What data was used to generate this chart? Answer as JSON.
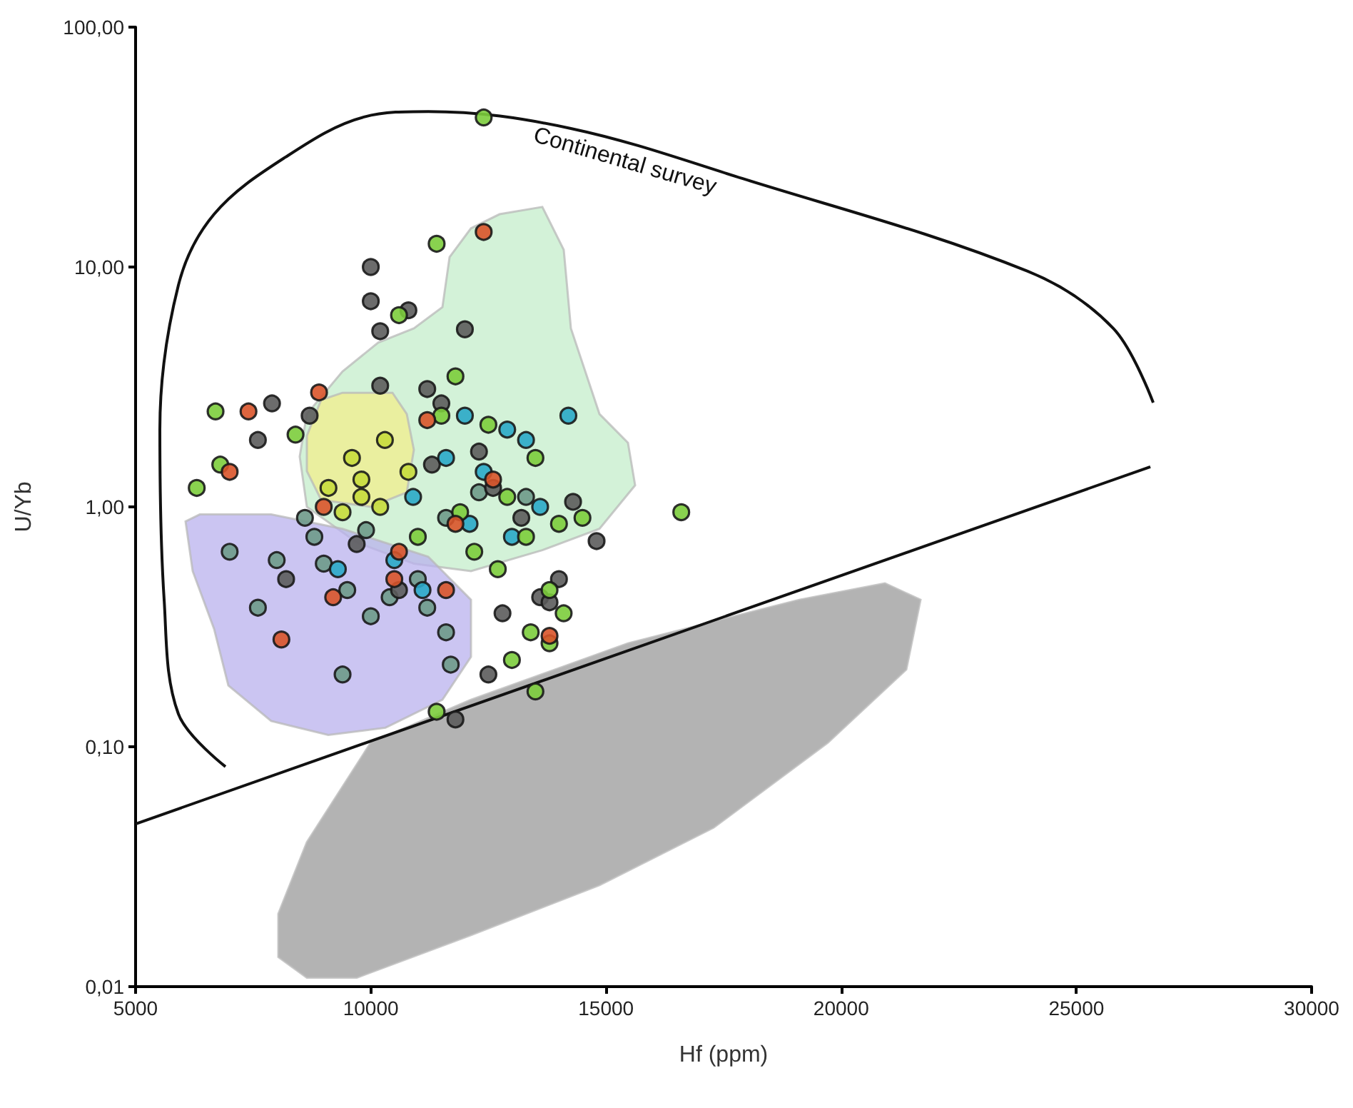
{
  "chart_data": {
    "type": "scatter",
    "xlabel": "Hf (ppm)",
    "ylabel": "U/Yb",
    "log": "y",
    "marker": "circle",
    "xlim": [
      5000,
      30000
    ],
    "xticks": [
      5000,
      10000,
      15000,
      20000,
      25000,
      30000
    ],
    "ylim": [
      0.01,
      100
    ],
    "yticks": [
      {
        "value": 0.01,
        "label": "0,01"
      },
      {
        "value": 0.1,
        "label": "0,10"
      },
      {
        "value": 1,
        "label": "1,00"
      },
      {
        "value": 10,
        "label": "10,00"
      },
      {
        "value": 100,
        "label": "100,00"
      }
    ],
    "series": [
      {
        "type": "area",
        "marker": "none",
        "color": "#c4eecb",
        "x": [
          8489,
          8641,
          9399,
          10158,
          10916,
          11523,
          11675,
          12130,
          12737,
          13647,
          14102,
          14254,
          14861,
          15467,
          15619,
          14861,
          13647,
          12130,
          10916,
          9703,
          8641
        ],
        "values": [
          1.62,
          2.44,
          3.67,
          4.84,
          5.55,
          6.8,
          11.0,
          14.5,
          16.6,
          17.8,
          11.8,
          5.55,
          2.44,
          1.85,
          1.23,
          0.81,
          0.66,
          0.54,
          0.58,
          0.71,
          1.0
        ]
      },
      {
        "type": "area",
        "marker": "none",
        "color": "#b9b2ee",
        "x": [
          6062,
          6365,
          7882,
          9399,
          11220,
          12130,
          12130,
          11523,
          10310,
          9096,
          7882,
          6972,
          6669,
          6214
        ],
        "values": [
          0.87,
          0.93,
          0.93,
          0.81,
          0.62,
          0.41,
          0.237,
          0.157,
          0.12,
          0.112,
          0.128,
          0.18,
          0.31,
          0.54
        ]
      },
      {
        "type": "area",
        "marker": "none",
        "color": "#f2ee8c",
        "x": [
          8641,
          8944,
          9399,
          10461,
          10765,
          10916,
          10765,
          10000,
          8944,
          8641
        ],
        "values": [
          1.98,
          2.79,
          2.99,
          2.99,
          2.44,
          1.73,
          1.15,
          1.0,
          1.07,
          1.41
        ]
      },
      {
        "type": "area",
        "marker": "none",
        "color": "#9a9a9a",
        "x": [
          8034,
          8641,
          10000,
          12130,
          15467,
          19108,
          20929,
          21687,
          21384,
          19715,
          17288,
          14861,
          12130,
          9703,
          8641,
          8034
        ],
        "values": [
          0.0201,
          0.04,
          0.104,
          0.157,
          0.27,
          0.41,
          0.48,
          0.41,
          0.21,
          0.104,
          0.046,
          0.0265,
          0.0164,
          0.0109,
          0.0109,
          0.0133
        ]
      },
      {
        "type": "line",
        "marker": "none",
        "name": "Continental survey",
        "color": "#111111",
        "line_style": "solid",
        "x": [
          6911,
          5910,
          5607,
          5516,
          5910,
          6669,
          8186,
          9854,
          11220,
          14254,
          17895,
          23963,
          25783,
          26633
        ],
        "values": [
          0.0826,
          0.137,
          0.41,
          2.1,
          8.4,
          16.6,
          28.7,
          42.2,
          44.5,
          37.8,
          23.4,
          9.6,
          5.55,
          2.72
        ]
      },
      {
        "type": "line",
        "marker": "none",
        "color": "#111111",
        "line_style": "solid",
        "x": [
          5000,
          26572
        ],
        "values": [
          0.0477,
          1.47
        ]
      },
      {
        "color": "#6e9a8a",
        "x": [
          7000,
          7600,
          9400,
          8000,
          8800,
          9500,
          10000,
          11000,
          11600,
          11700,
          9000,
          10400,
          11200,
          8600,
          9900,
          11600,
          12300,
          13300
        ],
        "values": [
          0.65,
          0.38,
          0.2,
          0.6,
          0.75,
          0.45,
          0.35,
          0.5,
          0.3,
          0.22,
          0.58,
          0.42,
          0.38,
          0.9,
          0.8,
          0.9,
          1.15,
          1.1
        ]
      },
      {
        "color": "#5c5c5c",
        "x": [
          10000,
          10000,
          10200,
          10800,
          10200,
          11200,
          12000,
          7900,
          7600,
          8700,
          12500,
          11800,
          14800,
          14300,
          13600,
          12800,
          13800,
          14000,
          9700,
          8200,
          10600,
          11500,
          11300,
          12600,
          13200,
          12300
        ],
        "values": [
          10,
          7.2,
          5.4,
          6.6,
          3.2,
          3.1,
          5.5,
          2.7,
          1.9,
          2.4,
          0.2,
          0.13,
          0.72,
          1.05,
          0.42,
          0.36,
          0.4,
          0.5,
          0.7,
          0.5,
          0.45,
          2.7,
          1.5,
          1.2,
          0.9,
          1.7
        ]
      },
      {
        "color": "#2aa8c8",
        "x": [
          12000,
          14200,
          12900,
          13300,
          11600,
          12400,
          10900,
          12100,
          13600,
          10500,
          9300,
          11100,
          13000
        ],
        "values": [
          2.4,
          2.4,
          2.1,
          1.9,
          1.6,
          1.4,
          1.1,
          0.85,
          1.0,
          0.6,
          0.55,
          0.45,
          0.75
        ]
      },
      {
        "color": "#7ccd3c",
        "x": [
          12400,
          11400,
          10600,
          11800,
          6700,
          6800,
          6300,
          8400,
          11500,
          12500,
          13500,
          12900,
          14000,
          13300,
          16600,
          11900,
          11000,
          12700,
          13400,
          13800,
          14100,
          13000,
          13500,
          11400,
          13800,
          12200,
          14500
        ],
        "values": [
          42,
          12.5,
          6.3,
          3.5,
          2.5,
          1.5,
          1.2,
          2.0,
          2.4,
          2.2,
          1.6,
          1.1,
          0.85,
          0.75,
          0.95,
          0.95,
          0.75,
          0.55,
          0.3,
          0.45,
          0.36,
          0.23,
          0.17,
          0.14,
          0.27,
          0.65,
          0.9
        ]
      },
      {
        "color": "#d9542a",
        "x": [
          12400,
          7400,
          7000,
          8900,
          8100,
          11200,
          9200,
          10500,
          13800,
          9000,
          11800,
          12600,
          10600,
          11600
        ],
        "values": [
          14,
          2.5,
          1.4,
          3.0,
          0.28,
          2.3,
          0.42,
          0.5,
          0.29,
          1.0,
          0.85,
          1.3,
          0.65,
          0.45
        ]
      },
      {
        "color": "#c8dc3c",
        "x": [
          9600,
          10300,
          9100,
          9800,
          10200,
          9400,
          10800,
          9800
        ],
        "values": [
          1.6,
          1.9,
          1.2,
          1.1,
          1.0,
          0.95,
          1.4,
          1.3
        ]
      }
    ]
  }
}
